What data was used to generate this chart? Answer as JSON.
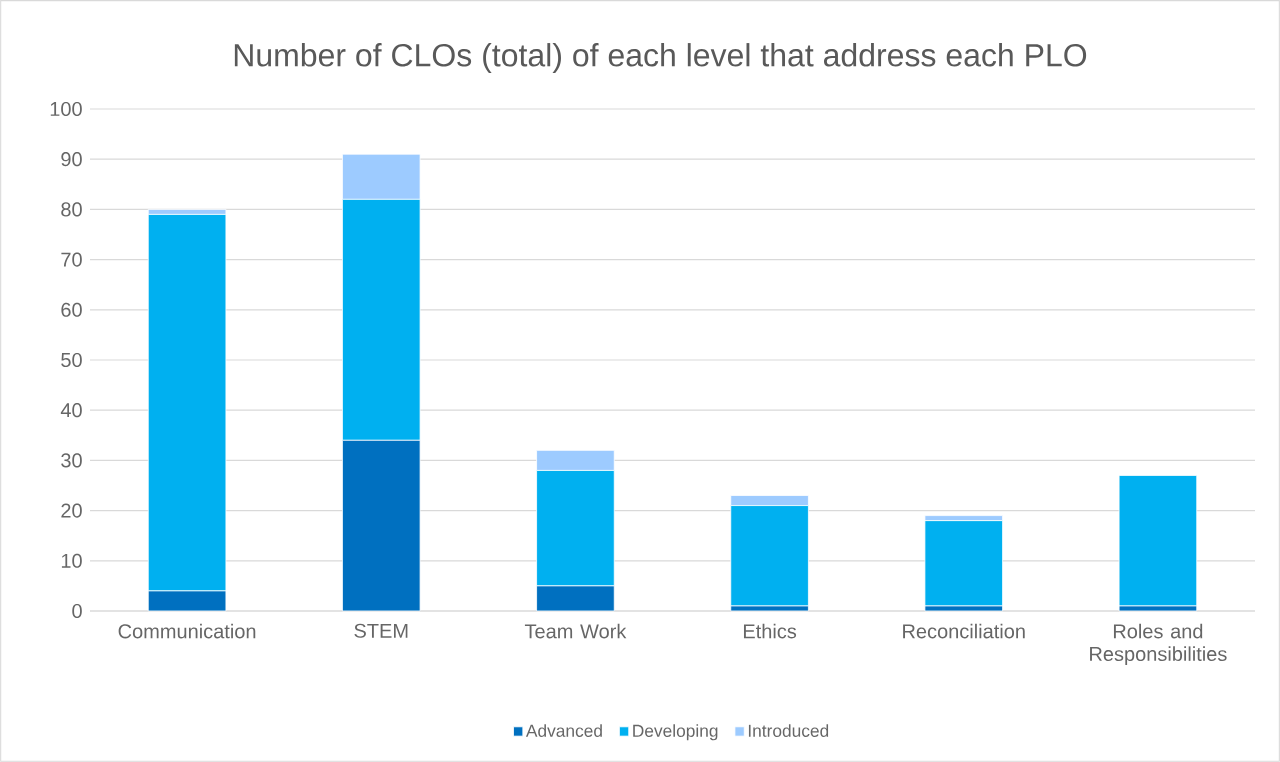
{
  "chart_data": {
    "type": "bar",
    "title": "Number of CLOs (total) of each level that address each PLO",
    "categories": [
      "Communication",
      "STEM",
      "Team Work",
      "Ethics",
      "Reconciliation",
      "Roles and Responsibilities"
    ],
    "series": [
      {
        "name": "Advanced",
        "color": "#0070c0",
        "values": [
          4,
          34,
          5,
          1,
          1,
          1
        ]
      },
      {
        "name": "Developing",
        "color": "#00b0f0",
        "values": [
          75,
          48,
          23,
          20,
          17,
          26
        ]
      },
      {
        "name": "Introduced",
        "color": "#9dcbff",
        "values": [
          1,
          9,
          4,
          2,
          1,
          0
        ]
      }
    ],
    "stacked": true,
    "ylim": [
      0,
      100
    ],
    "yticks": [
      0,
      10,
      20,
      30,
      40,
      50,
      60,
      70,
      80,
      90,
      100
    ],
    "grid": "y",
    "legend": "bottom"
  }
}
